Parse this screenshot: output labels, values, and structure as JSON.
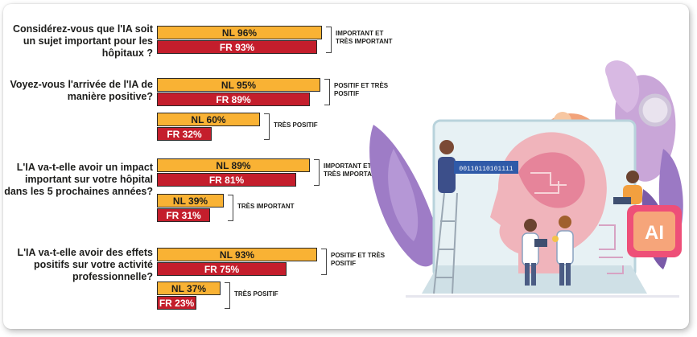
{
  "chart_data": {
    "type": "bar",
    "orientation": "horizontal",
    "series_names": [
      "NL",
      "FR"
    ],
    "colors": {
      "NL": "#f9b234",
      "FR": "#c41e2c"
    },
    "questions": [
      {
        "text": "Considérez-vous que l'IA soit un sujet important pour les hôpitaux ?",
        "groups": [
          {
            "label": "IMPORTANT ET TRÈS IMPORTANT",
            "nl": 96,
            "fr": 93,
            "nl_label": "NL 96%",
            "fr_label": "FR 93%"
          }
        ]
      },
      {
        "text": "Voyez-vous l'arrivée de l'IA de manière positive?",
        "groups": [
          {
            "label": "POSITIF ET TRÈS POSITIF",
            "nl": 95,
            "fr": 89,
            "nl_label": "NL 95%",
            "fr_label": "FR 89%"
          },
          {
            "label": "TRÈS POSITIF",
            "nl": 60,
            "fr": 32,
            "nl_label": "NL 60%",
            "fr_label": "FR 32%"
          }
        ]
      },
      {
        "text": "L'IA va-t-elle avoir un impact important sur votre hôpital dans les 5 prochaines années?",
        "groups": [
          {
            "label": "IMPORTANT ET TRÈS IMPORTANT",
            "nl": 89,
            "fr": 81,
            "nl_label": "NL 89%",
            "fr_label": "FR 81%"
          },
          {
            "label": "TRÈS IMPORTANT",
            "nl": 39,
            "fr": 31,
            "nl_label": "NL 39%",
            "fr_label": "FR 31%"
          }
        ]
      },
      {
        "text": "L'IA va-t-elle avoir des effets positifs sur votre activité professionnelle?",
        "groups": [
          {
            "label": "POSITIF ET TRÈS POSITIF",
            "nl": 93,
            "fr": 75,
            "nl_label": "NL 93%",
            "fr_label": "FR 75%"
          },
          {
            "label": "TRÈS POSITIF",
            "nl": 37,
            "fr": 23,
            "nl_label": "NL 37%",
            "fr_label": "FR 23%"
          }
        ]
      }
    ]
  },
  "illustration": {
    "ai_badge": "AI",
    "binary_banner": "00110110101111"
  }
}
